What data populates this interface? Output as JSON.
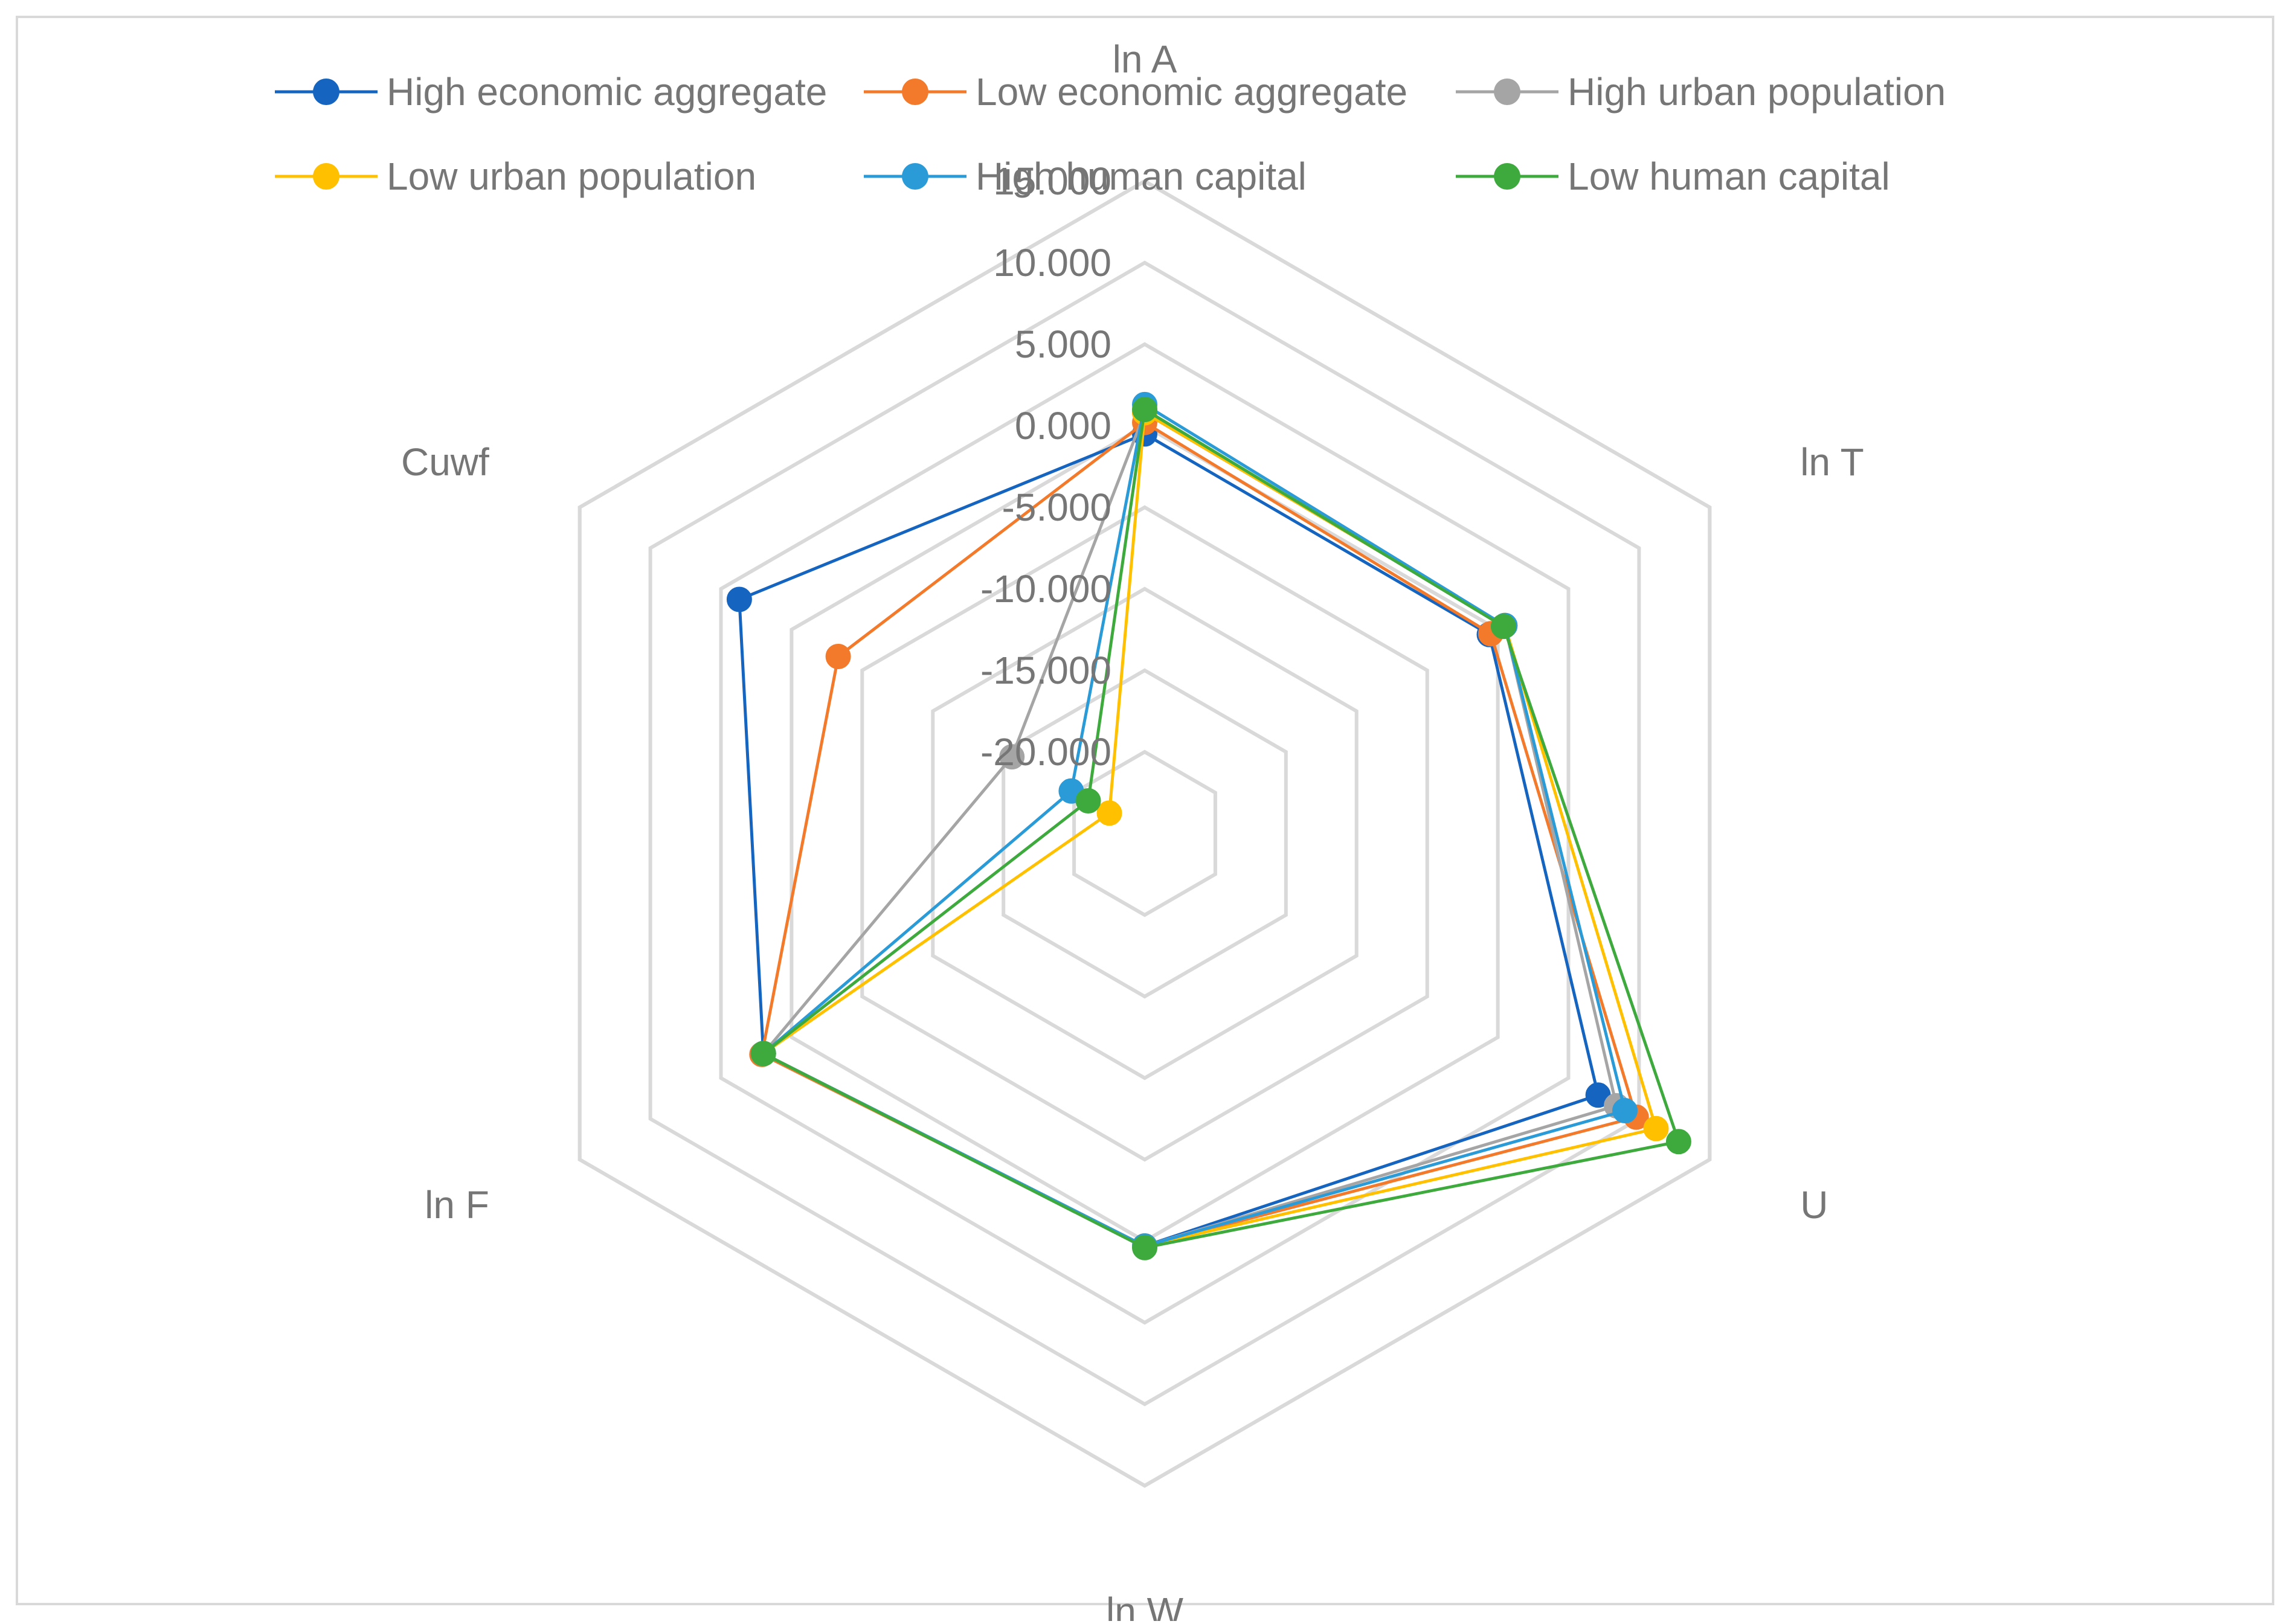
{
  "chart_data": {
    "type": "radar",
    "title": "",
    "axes": [
      "ln A",
      "ln T",
      "U",
      "ln W",
      "ln F",
      "Cuwf"
    ],
    "ticks": [
      "15.000",
      "10.000",
      "5.000",
      "0.000",
      "-5.000",
      "-10.000",
      "-15.000",
      "-20.000"
    ],
    "tick_values": [
      15,
      10,
      5,
      0,
      -5,
      -10,
      -15,
      -20
    ],
    "rmin": -25,
    "rmax": 15,
    "grid": true,
    "legend_position": "top",
    "series": [
      {
        "name": "High economic aggregate",
        "color": "#1565C0",
        "values": [
          -0.5,
          -0.6,
          7.1,
          0.3,
          2.0,
          3.7
        ]
      },
      {
        "name": "Low economic aggregate",
        "color": "#F47A2B",
        "values": [
          0.2,
          -0.5,
          9.8,
          0.3,
          2.1,
          -3.3
        ]
      },
      {
        "name": "High urban population",
        "color": "#A5A5A5",
        "values": [
          0.8,
          0.5,
          8.4,
          0.3,
          2.0,
          -15.6
        ]
      },
      {
        "name": "Low urban population",
        "color": "#FFC000",
        "values": [
          0.8,
          0.5,
          11.2,
          0.3,
          2.0,
          -22.5
        ]
      },
      {
        "name": "High human capital",
        "color": "#2B9BD8",
        "values": [
          1.3,
          0.5,
          9.0,
          0.3,
          2.0,
          -19.8
        ]
      },
      {
        "name": "Low human capital",
        "color": "#3EAA3E",
        "values": [
          1.0,
          0.4,
          12.8,
          0.4,
          2.0,
          -21.0
        ]
      }
    ]
  }
}
